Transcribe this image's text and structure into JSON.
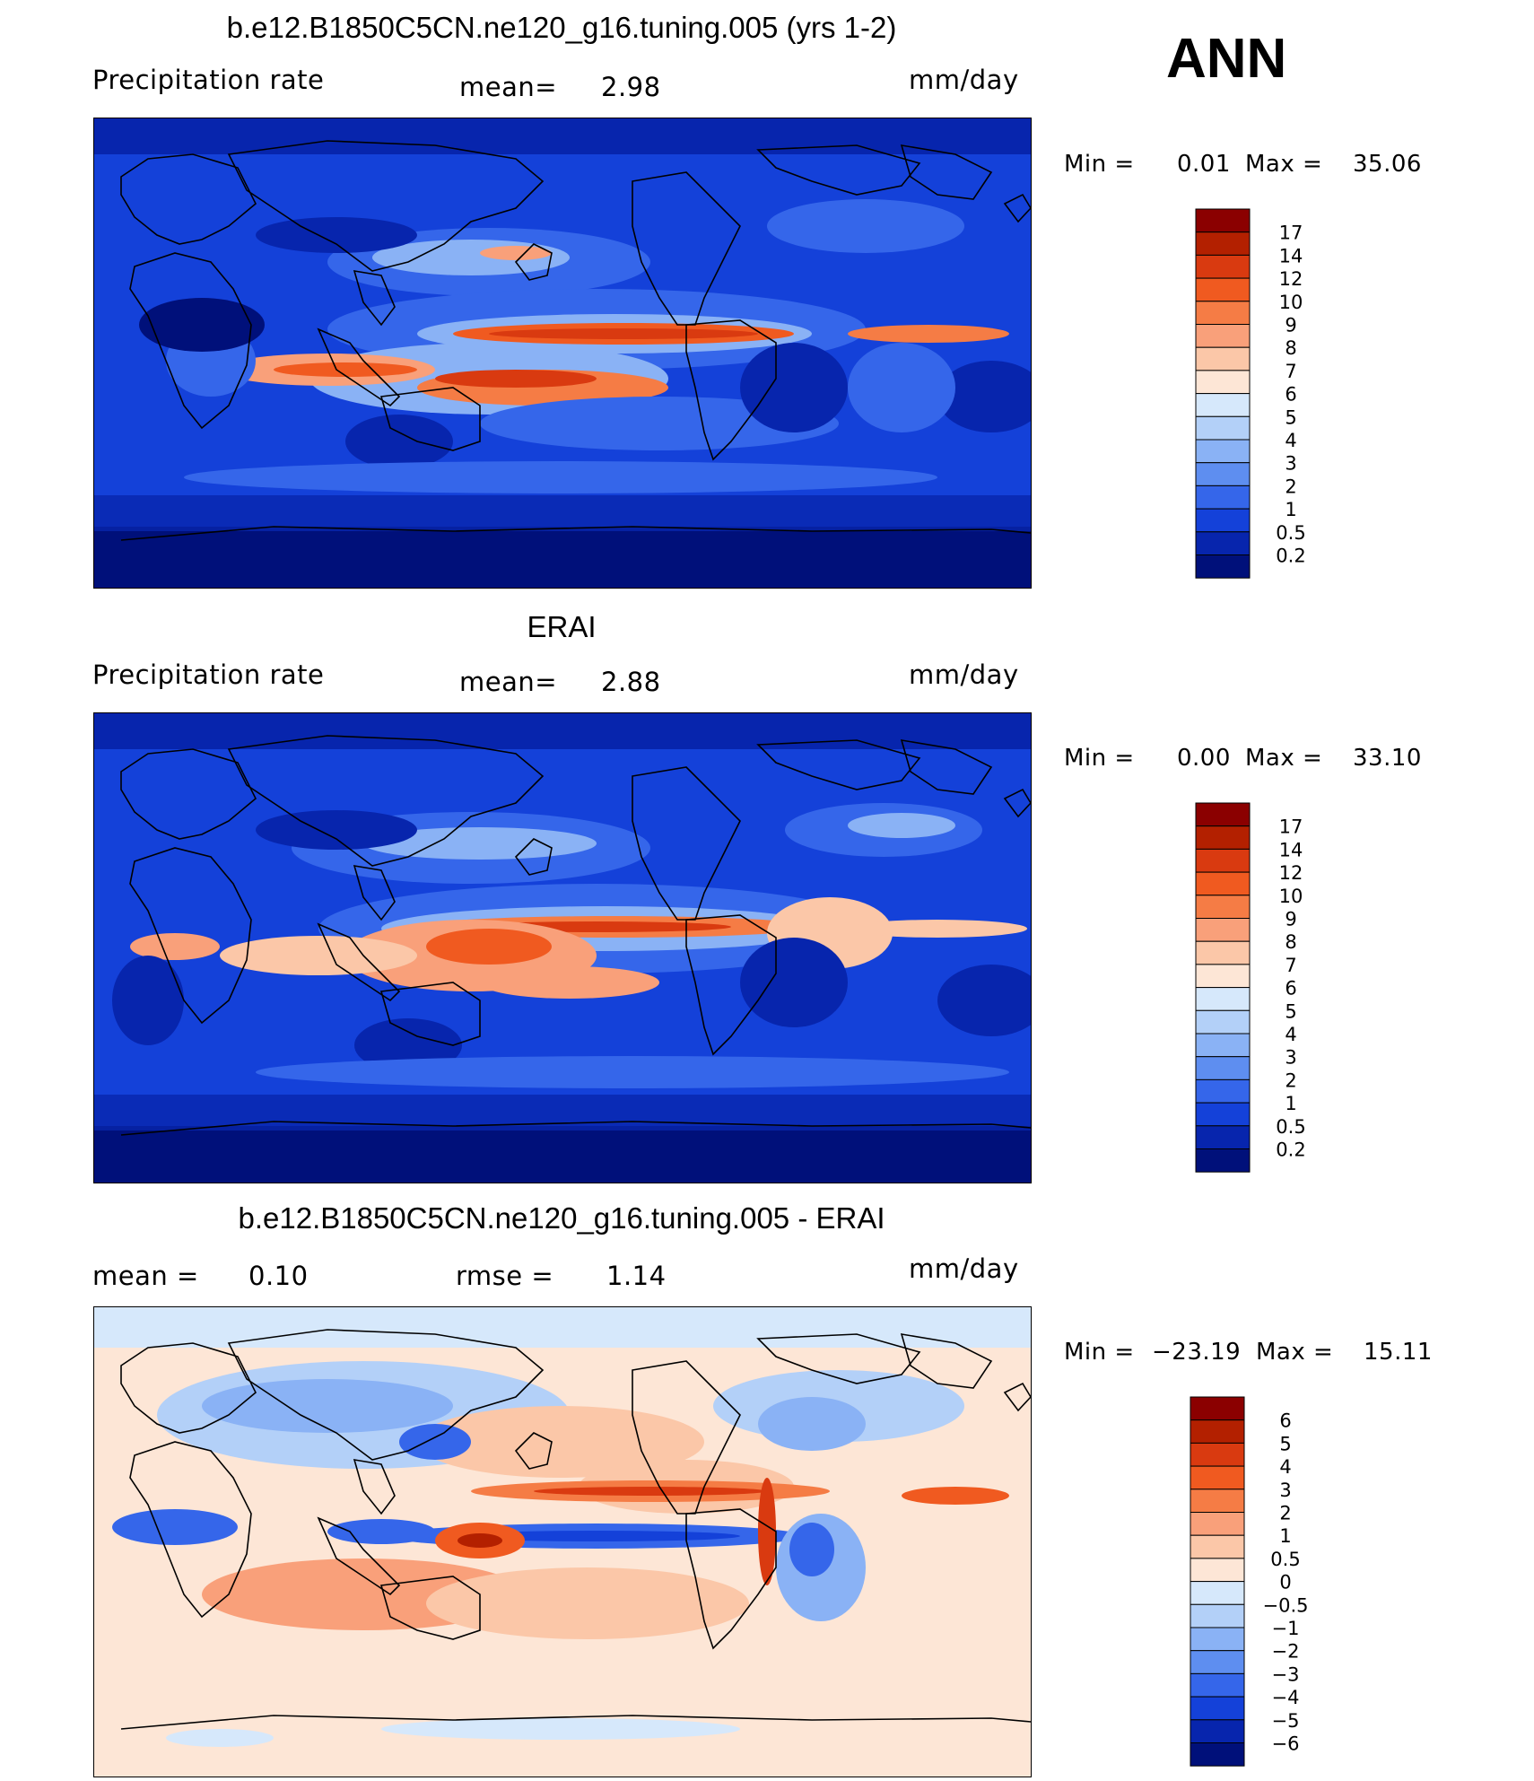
{
  "season": "ANN",
  "panels": [
    {
      "title": "b.e12.B1850C5CN.ne120_g16.tuning.005 (yrs 1-2)",
      "left_label": "Precipitation rate",
      "center_label": "mean=",
      "center_value": "2.98",
      "units": "mm/day",
      "min_label": "Min =",
      "min_value": "0.01",
      "max_label": "Max =",
      "max_value": "35.06",
      "colorbar": {
        "levels": [
          "17",
          "14",
          "12",
          "10",
          "9",
          "8",
          "7",
          "6",
          "5",
          "4",
          "3",
          "2",
          "1",
          "0.5",
          "0.2"
        ],
        "colors": [
          "#8b0000",
          "#b32000",
          "#d93a10",
          "#f05a20",
          "#f57c45",
          "#f9a07a",
          "#fbc7a8",
          "#fde6d6",
          "#d6e8fb",
          "#b3d0f8",
          "#8ab2f5",
          "#5e8ef0",
          "#3566ea",
          "#1441d9",
          "#0725ad",
          "#00107a"
        ]
      }
    },
    {
      "title": "ERAI",
      "left_label": "Precipitation rate",
      "center_label": "mean=",
      "center_value": "2.88",
      "units": "mm/day",
      "min_label": "Min =",
      "min_value": "0.00",
      "max_label": "Max =",
      "max_value": "33.10",
      "colorbar": {
        "levels": [
          "17",
          "14",
          "12",
          "10",
          "9",
          "8",
          "7",
          "6",
          "5",
          "4",
          "3",
          "2",
          "1",
          "0.5",
          "0.2"
        ],
        "colors": [
          "#8b0000",
          "#b32000",
          "#d93a10",
          "#f05a20",
          "#f57c45",
          "#f9a07a",
          "#fbc7a8",
          "#fde6d6",
          "#d6e8fb",
          "#b3d0f8",
          "#8ab2f5",
          "#5e8ef0",
          "#3566ea",
          "#1441d9",
          "#0725ad",
          "#00107a"
        ]
      }
    },
    {
      "title": "b.e12.B1850C5CN.ne120_g16.tuning.005 - ERAI",
      "left_label": "mean =",
      "left_value": "0.10",
      "center_label": "rmse =",
      "center_value": "1.14",
      "units": "mm/day",
      "min_label": "Min =",
      "min_value": "−23.19",
      "max_label": "Max =",
      "max_value": "15.11",
      "colorbar": {
        "levels": [
          "6",
          "5",
          "4",
          "3",
          "2",
          "1",
          "0.5",
          "0",
          "−0.5",
          "−1",
          "−2",
          "−3",
          "−4",
          "−5",
          "−6"
        ],
        "colors": [
          "#8b0000",
          "#b32000",
          "#d93a10",
          "#f05a20",
          "#f57c45",
          "#f9a07a",
          "#fbc7a8",
          "#fde6d6",
          "#d6e8fb",
          "#b3d0f8",
          "#8ab2f5",
          "#5e8ef0",
          "#3566ea",
          "#1441d9",
          "#0725ad",
          "#00107a"
        ]
      }
    }
  ],
  "colors": {
    "deep_blue": "#00107a",
    "mid_blue": "#1441d9",
    "light_blue": "#8ab2f5",
    "pale_peach": "#fde6d6",
    "red": "#d93a10",
    "coastline": "#000000"
  }
}
